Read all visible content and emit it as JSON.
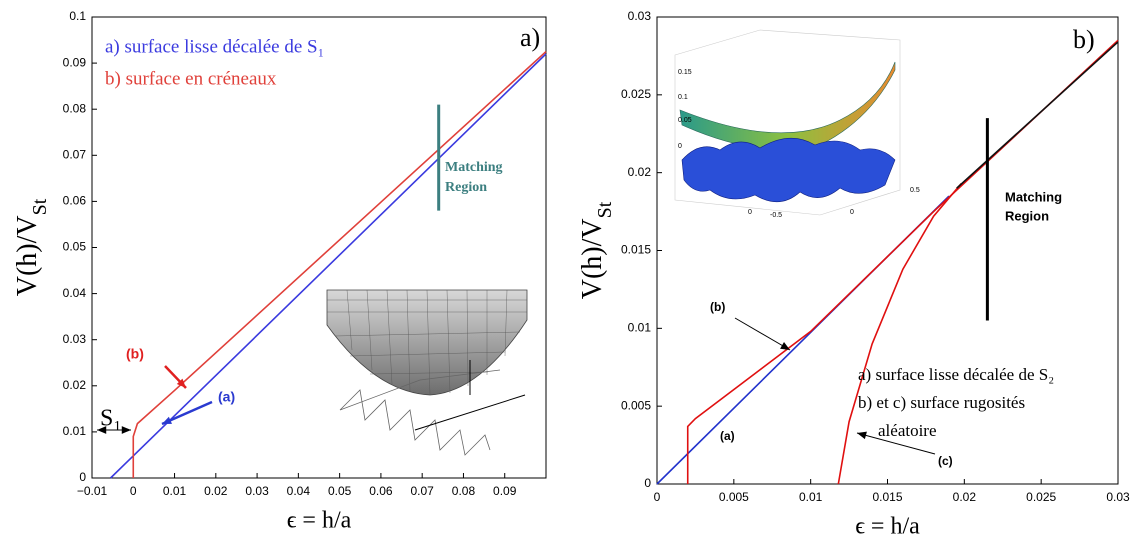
{
  "chart_data": [
    {
      "type": "line",
      "xlabel": "ϵ = h/a",
      "ylabel": "V(h)/V",
      "ylabel_sub": "St",
      "xlim": [
        -0.01,
        0.1
      ],
      "ylim": [
        0,
        0.1
      ],
      "xticks": [
        {
          "value": -0.01,
          "label": "−0.01"
        },
        0,
        0.01,
        0.02,
        0.03,
        0.04,
        0.05,
        0.06,
        0.07,
        0.08,
        0.09
      ],
      "yticks": [
        0,
        0.01,
        0.02,
        0.03,
        0.04,
        0.05,
        0.06,
        0.07,
        0.08,
        0.09,
        0.1
      ],
      "series": [
        {
          "name": "a) surface lisse décalée de S₁",
          "color": "#3a3adf",
          "x": [
            -0.0055,
            0.1
          ],
          "values": [
            0,
            0.092
          ]
        },
        {
          "name": "b) surface en créneaux",
          "color": "#e0403a",
          "x": [
            0,
            0,
            0.001,
            0.01,
            0.1
          ],
          "values": [
            0,
            0.009,
            0.0118,
            0.019,
            0.0925
          ]
        }
      ],
      "region": {
        "color": "#3c7f80",
        "x": 0.074,
        "y": [
          0.058,
          0.081
        ]
      },
      "annotations": [
        {
          "text": "a)",
          "color": "#000000"
        },
        {
          "text": "Matching",
          "color": "#3c7f80"
        },
        {
          "text": "Region",
          "color": "#3c7f80"
        },
        {
          "text": "(b)",
          "color": "#e02020"
        },
        {
          "text": "(a)",
          "color": "#2a3ad0"
        },
        {
          "text": "S₁",
          "color": "#000000"
        }
      ]
    },
    {
      "type": "line",
      "xlabel": "ϵ = h/a",
      "ylabel": "V(h)/V",
      "ylabel_sub": "St",
      "xlim": [
        0,
        0.03
      ],
      "ylim": [
        0,
        0.03
      ],
      "xticks": [
        0,
        0.005,
        0.01,
        0.015,
        0.02,
        0.025,
        0.03
      ],
      "yticks": [
        0,
        0.005,
        0.01,
        0.015,
        0.02,
        0.025,
        0.03
      ],
      "series": [
        {
          "name": "a) surface lisse décalée de S₂",
          "color": "#2233cc",
          "x": [
            0,
            0.019
          ],
          "values": [
            0,
            0.0185
          ]
        },
        {
          "name": "b) et c) surface rugosités",
          "color": "#e01010",
          "x": [
            0.002,
            0.002,
            0.0025,
            0.01,
            0.018,
            0.03
          ],
          "values": [
            0,
            0.0037,
            0.0042,
            0.0098,
            0.0175,
            0.0285
          ]
        },
        {
          "name": "aléatoire",
          "color": "#e01010",
          "x": [
            0.0118,
            0.0125,
            0.014,
            0.016,
            0.018,
            0.0198
          ],
          "values": [
            0,
            0.004,
            0.009,
            0.0138,
            0.0172,
            0.0193
          ]
        },
        {
          "color": "#111111",
          "x": [
            0.0195,
            0.03
          ],
          "values": [
            0.019,
            0.0284
          ]
        }
      ],
      "region": {
        "color": "#000000",
        "x": 0.0215,
        "y": [
          0.0105,
          0.0235
        ]
      },
      "annotations": [
        {
          "text": "b)",
          "color": "#000000"
        },
        {
          "text": "Matching",
          "color": "#000000"
        },
        {
          "text": "Region",
          "color": "#000000"
        },
        {
          "text": "(b)",
          "color": "#000000"
        },
        {
          "text": "(a)",
          "color": "#000000"
        },
        {
          "text": "(c)",
          "color": "#000000"
        }
      ],
      "inset_labels": [
        "0.15",
        "0.1",
        "0.05",
        "0",
        "0",
        "-0.5",
        "0",
        "0.5"
      ]
    }
  ]
}
